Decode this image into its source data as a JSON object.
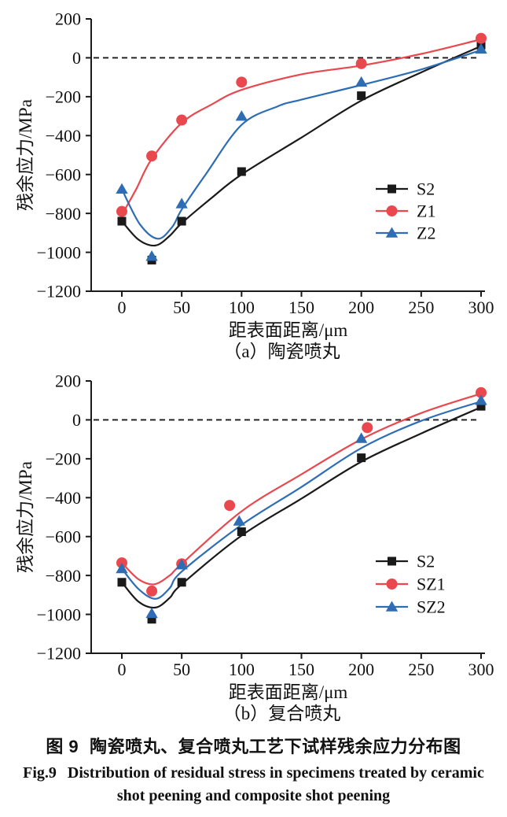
{
  "figure": {
    "caption_zh_prefix": "图 9",
    "caption_zh": "陶瓷喷丸、复合喷丸工艺下试样残余应力分布图",
    "caption_en_prefix": "Fig.9",
    "caption_en_line1": "Distribution of residual stress in specimens treated by ceramic",
    "caption_en_line2": "shot peening and composite shot peening"
  },
  "colors": {
    "axis": "#1a1a1a",
    "black": "#1a1a1a",
    "red": "#e9484f",
    "blue": "#2e6db4"
  },
  "chart_data": [
    {
      "type": "scatter",
      "panel_label": "（a）陶瓷喷丸",
      "xlabel": "距表面距离/μm",
      "ylabel": "残余应力/MPa",
      "xlim": [
        0,
        300
      ],
      "ylim": [
        -1200,
        200
      ],
      "xticks": [
        0,
        50,
        100,
        150,
        200,
        250,
        300
      ],
      "yticks": [
        200,
        0,
        -200,
        -400,
        -600,
        -800,
        -1000,
        -1200
      ],
      "xtick_labels": [
        "0",
        "50",
        "100",
        "150",
        "200",
        "250",
        "300"
      ],
      "ytick_labels": [
        "200",
        "0",
        "−200",
        "−400",
        "−600",
        "−800",
        "−1000",
        "−1200"
      ],
      "grid": false,
      "zero_dashed_line": true,
      "legend_position": "right-center",
      "series": [
        {
          "name": "S2",
          "marker": "square",
          "color": "#1a1a1a",
          "points": [
            [
              0,
              -840
            ],
            [
              25,
              -1040
            ],
            [
              50,
              -840
            ],
            [
              100,
              -585
            ],
            [
              200,
              -195
            ],
            [
              300,
              65
            ]
          ],
          "fit_curve": [
            [
              0,
              -840
            ],
            [
              14,
              -935
            ],
            [
              28,
              -965
            ],
            [
              40,
              -915
            ],
            [
              50,
              -850
            ],
            [
              75,
              -720
            ],
            [
              100,
              -600
            ],
            [
              150,
              -410
            ],
            [
              200,
              -220
            ],
            [
              250,
              -75
            ],
            [
              300,
              60
            ]
          ]
        },
        {
          "name": "Z1",
          "marker": "circle",
          "color": "#e9484f",
          "points": [
            [
              0,
              -790
            ],
            [
              25,
              -505
            ],
            [
              50,
              -320
            ],
            [
              100,
              -125
            ],
            [
              200,
              -30
            ],
            [
              300,
              100
            ]
          ],
          "fit_curve": [
            [
              0,
              -808
            ],
            [
              12,
              -675
            ],
            [
              25,
              -520
            ],
            [
              50,
              -335
            ],
            [
              75,
              -240
            ],
            [
              100,
              -165
            ],
            [
              150,
              -85
            ],
            [
              200,
              -40
            ],
            [
              250,
              20
            ],
            [
              300,
              95
            ]
          ]
        },
        {
          "name": "Z2",
          "marker": "triangle",
          "color": "#2e6db4",
          "points": [
            [
              0,
              -675
            ],
            [
              25,
              -1020
            ],
            [
              50,
              -750
            ],
            [
              100,
              -300
            ],
            [
              200,
              -125
            ],
            [
              300,
              45
            ]
          ],
          "fit_curve": [
            [
              0,
              -675
            ],
            [
              15,
              -855
            ],
            [
              30,
              -930
            ],
            [
              42,
              -870
            ],
            [
              50,
              -780
            ],
            [
              70,
              -600
            ],
            [
              100,
              -345
            ],
            [
              130,
              -250
            ],
            [
              150,
              -215
            ],
            [
              200,
              -140
            ],
            [
              250,
              -60
            ],
            [
              300,
              40
            ]
          ]
        }
      ]
    },
    {
      "type": "scatter",
      "panel_label": "（b）复合喷丸",
      "xlabel": "距表面距离/μm",
      "ylabel": "残余应力/MPa",
      "xlim": [
        0,
        300
      ],
      "ylim": [
        -1200,
        200
      ],
      "xticks": [
        0,
        50,
        100,
        150,
        200,
        250,
        300
      ],
      "yticks": [
        200,
        0,
        -200,
        -400,
        -600,
        -800,
        -1000,
        -1200
      ],
      "xtick_labels": [
        "0",
        "50",
        "100",
        "150",
        "200",
        "250",
        "300"
      ],
      "ytick_labels": [
        "200",
        "0",
        "−200",
        "−400",
        "−600",
        "−800",
        "−1000",
        "−1200"
      ],
      "grid": false,
      "zero_dashed_line": true,
      "legend_position": "right-center",
      "series": [
        {
          "name": "S2",
          "marker": "square",
          "color": "#1a1a1a",
          "points": [
            [
              0,
              -835
            ],
            [
              25,
              -1025
            ],
            [
              50,
              -835
            ],
            [
              100,
              -575
            ],
            [
              200,
              -195
            ],
            [
              300,
              70
            ]
          ],
          "fit_curve": [
            [
              0,
              -835
            ],
            [
              14,
              -935
            ],
            [
              28,
              -965
            ],
            [
              40,
              -915
            ],
            [
              50,
              -845
            ],
            [
              100,
              -595
            ],
            [
              150,
              -405
            ],
            [
              200,
              -215
            ],
            [
              250,
              -70
            ],
            [
              300,
              65
            ]
          ]
        },
        {
          "name": "SZ1",
          "marker": "circle",
          "color": "#e9484f",
          "points": [
            [
              0,
              -735
            ],
            [
              25,
              -880
            ],
            [
              50,
              -740
            ],
            [
              90,
              -440
            ],
            [
              205,
              -40
            ],
            [
              300,
              140
            ]
          ],
          "fit_curve": [
            [
              0,
              -735
            ],
            [
              14,
              -820
            ],
            [
              27,
              -845
            ],
            [
              40,
              -800
            ],
            [
              50,
              -740
            ],
            [
              100,
              -470
            ],
            [
              150,
              -280
            ],
            [
              200,
              -100
            ],
            [
              250,
              35
            ],
            [
              300,
              135
            ]
          ]
        },
        {
          "name": "SZ2",
          "marker": "triangle",
          "color": "#2e6db4",
          "points": [
            [
              0,
              -765
            ],
            [
              25,
              -995
            ],
            [
              50,
              -745
            ],
            [
              98,
              -520
            ],
            [
              200,
              -95
            ],
            [
              300,
              100
            ]
          ],
          "fit_curve": [
            [
              0,
              -765
            ],
            [
              14,
              -870
            ],
            [
              28,
              -920
            ],
            [
              40,
              -865
            ],
            [
              50,
              -780
            ],
            [
              100,
              -540
            ],
            [
              150,
              -345
            ],
            [
              200,
              -145
            ],
            [
              250,
              -5
            ],
            [
              300,
              95
            ]
          ]
        }
      ]
    }
  ]
}
